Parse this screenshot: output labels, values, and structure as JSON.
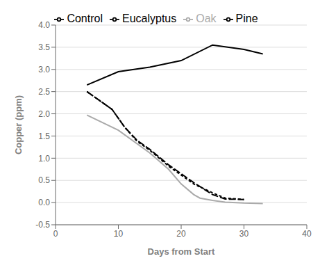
{
  "chart_data": {
    "type": "line",
    "xlabel": "Days from  Start",
    "ylabel": "Copper (ppm)",
    "xlim": [
      0,
      40
    ],
    "xticks": [
      0,
      10,
      20,
      30,
      40
    ],
    "ylim": [
      -0.5,
      4
    ],
    "yticks": [
      -0.5,
      {
        "value": 0,
        "label": "0.0"
      },
      0.5,
      {
        "value": 1,
        "label": "1.0"
      },
      1.5,
      {
        "value": 2,
        "label": "2.0"
      },
      2.5,
      {
        "value": 3,
        "label": "3.0"
      },
      3.5,
      {
        "value": 4,
        "label": "4.0"
      }
    ],
    "grid": "y",
    "legend": "top",
    "series": [
      {
        "name": "Control",
        "color": "#000000",
        "line_style": "solid",
        "x": [
          5,
          10,
          15,
          20,
          25,
          30,
          33
        ],
        "values": [
          2.65,
          2.95,
          3.05,
          3.2,
          3.55,
          3.45,
          3.35
        ]
      },
      {
        "name": "Eucalyptus",
        "color": "#000000",
        "line_style": "long_dash",
        "x": [
          5,
          7,
          9,
          11,
          13,
          15,
          18,
          20,
          22,
          25,
          27,
          30
        ],
        "values": [
          2.5,
          2.3,
          2.1,
          1.7,
          1.4,
          1.2,
          0.85,
          0.65,
          0.45,
          0.18,
          0.08,
          0.07
        ]
      },
      {
        "name": "Pine",
        "color": "#000000",
        "line_style": "dash",
        "x": [
          5,
          7,
          9,
          11,
          13,
          15,
          18,
          20,
          22,
          25,
          27,
          30
        ],
        "values": [
          2.5,
          2.3,
          2.1,
          1.7,
          1.38,
          1.18,
          0.82,
          0.62,
          0.42,
          0.22,
          0.1,
          0.07
        ]
      },
      {
        "name": "Oak",
        "color": "#aaaaaa",
        "line_style": "solid",
        "x": [
          5,
          10,
          15,
          18,
          20,
          22,
          23,
          25,
          27,
          30,
          33
        ],
        "values": [
          1.97,
          1.63,
          1.12,
          0.75,
          0.42,
          0.18,
          0.1,
          0.05,
          0.01,
          -0.01,
          -0.02
        ]
      }
    ]
  }
}
